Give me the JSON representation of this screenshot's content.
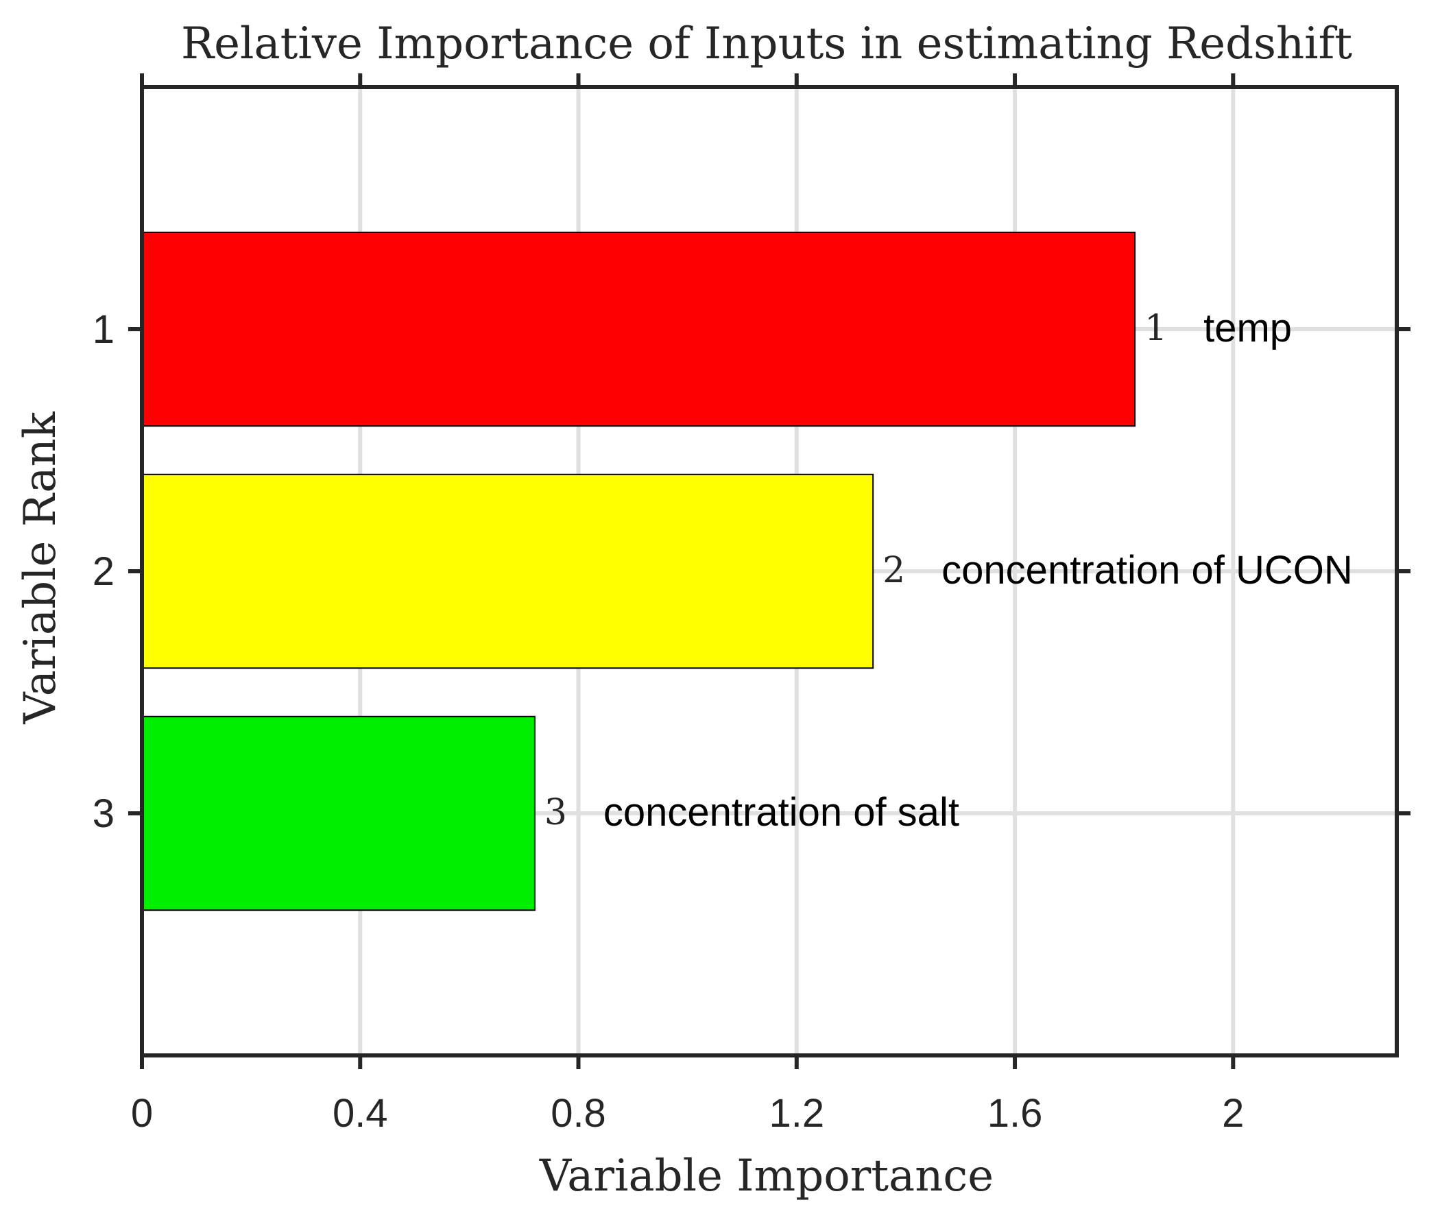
{
  "chart_data": {
    "type": "bar",
    "orientation": "horizontal",
    "title": "Relative Importance of Inputs in estimating Redshift",
    "xlabel": "Variable Importance",
    "ylabel": "Variable Rank",
    "xlim": [
      0,
      2.3
    ],
    "x_ticks": [
      "0",
      "0.4",
      "0.8",
      "1.2",
      "1.6",
      "2"
    ],
    "x_tick_values": [
      0,
      0.4,
      0.8,
      1.2,
      1.6,
      2.0
    ],
    "y_ticks": [
      "1",
      "2",
      "3"
    ],
    "grid": true,
    "bars": [
      {
        "rank": "1",
        "value": 1.82,
        "rank_label": "1",
        "label": "temp",
        "color": "#ff0000"
      },
      {
        "rank": "2",
        "value": 1.34,
        "rank_label": "2",
        "label": "concentration of UCON",
        "color": "#ffff00"
      },
      {
        "rank": "3",
        "value": 0.72,
        "rank_label": "3",
        "label": "concentration of salt",
        "color": "#00ee00"
      }
    ]
  }
}
